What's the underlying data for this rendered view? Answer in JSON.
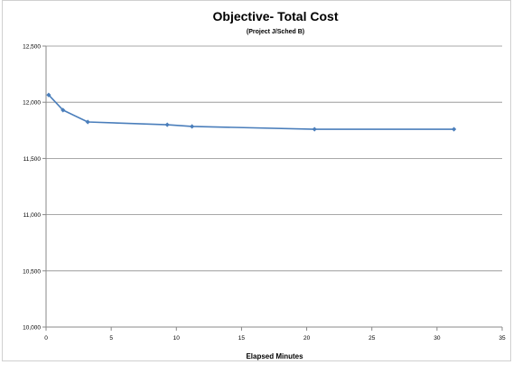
{
  "chart_data": {
    "type": "line",
    "title": "Objective- Total Cost",
    "subtitle": "(Project J/Sched B)",
    "xlabel": "Elapsed Minutes",
    "ylabel": "",
    "xlim": [
      0,
      35
    ],
    "ylim": [
      10000,
      12500
    ],
    "x_ticks": [
      0,
      5,
      10,
      15,
      20,
      25,
      30,
      35
    ],
    "y_ticks": [
      10000,
      10500,
      11000,
      11500,
      12000,
      12500
    ],
    "x_tick_labels": [
      "0",
      "5",
      "10",
      "15",
      "20",
      "25",
      "30",
      "35"
    ],
    "y_tick_labels": [
      "10,000",
      "10,500",
      "11,000",
      "11,500",
      "12,000",
      "12,500"
    ],
    "grid": "horizontal",
    "legend": "none",
    "series": [
      {
        "color": "#4a7ebb",
        "x": [
          0.2,
          1.3,
          3.2,
          9.3,
          11.2,
          20.6,
          31.3
        ],
        "y": [
          12065,
          11930,
          11825,
          11800,
          11785,
          11760,
          11760
        ]
      }
    ]
  }
}
